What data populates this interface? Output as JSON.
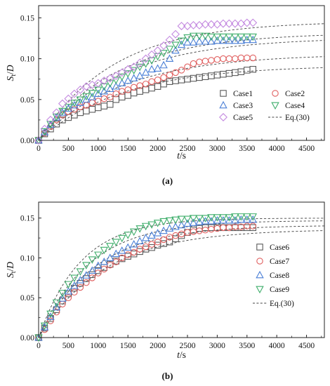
{
  "chart_data": [
    {
      "type": "scatter",
      "panel_label": "(a)",
      "xlabel": "t/s",
      "ylabel": "St/D",
      "xlim": [
        0,
        4800
      ],
      "ylim": [
        0,
        0.165
      ],
      "xticks": [
        0,
        500,
        1000,
        1500,
        2000,
        2500,
        3000,
        3500,
        4000,
        4500
      ],
      "yticks": [
        0.0,
        0.05,
        0.1,
        0.15
      ],
      "ytick_labels": [
        "0.00",
        "0.05",
        "0.10",
        "0.15"
      ],
      "legend_position": "bottom-right",
      "series": [
        {
          "name": "Case1",
          "marker": "square",
          "color": "#5a5a5a",
          "x": [
            0,
            100,
            200,
            300,
            400,
            500,
            600,
            700,
            800,
            900,
            1000,
            1100,
            1200,
            1300,
            1400,
            1500,
            1600,
            1700,
            1800,
            1900,
            2000,
            2100,
            2200,
            2300,
            2400,
            2500,
            2600,
            2700,
            2800,
            2900,
            3000,
            3100,
            3200,
            3300,
            3400,
            3500,
            3600
          ],
          "y": [
            0.0,
            0.008,
            0.014,
            0.02,
            0.025,
            0.028,
            0.031,
            0.034,
            0.036,
            0.038,
            0.04,
            0.042,
            0.044,
            0.05,
            0.053,
            0.055,
            0.058,
            0.06,
            0.062,
            0.064,
            0.066,
            0.069,
            0.072,
            0.073,
            0.074,
            0.075,
            0.076,
            0.077,
            0.078,
            0.079,
            0.08,
            0.081,
            0.082,
            0.083,
            0.084,
            0.086,
            0.087
          ]
        },
        {
          "name": "Case2",
          "marker": "circle",
          "color": "#e06060",
          "x": [
            0,
            100,
            200,
            300,
            400,
            500,
            600,
            700,
            800,
            900,
            1000,
            1100,
            1200,
            1300,
            1400,
            1500,
            1600,
            1700,
            1800,
            1900,
            2000,
            2100,
            2200,
            2300,
            2400,
            2500,
            2600,
            2700,
            2800,
            2900,
            3000,
            3100,
            3200,
            3300,
            3400,
            3500,
            3600
          ],
          "y": [
            0.0,
            0.009,
            0.017,
            0.025,
            0.031,
            0.035,
            0.038,
            0.041,
            0.043,
            0.046,
            0.048,
            0.051,
            0.053,
            0.057,
            0.06,
            0.062,
            0.065,
            0.067,
            0.069,
            0.072,
            0.074,
            0.077,
            0.08,
            0.083,
            0.086,
            0.09,
            0.094,
            0.096,
            0.097,
            0.098,
            0.099,
            0.1,
            0.1,
            0.1,
            0.101,
            0.101,
            0.101
          ]
        },
        {
          "name": "Case3",
          "marker": "triangle-up",
          "color": "#4a7fd6",
          "x": [
            0,
            100,
            200,
            300,
            400,
            500,
            600,
            700,
            800,
            900,
            1000,
            1100,
            1200,
            1300,
            1400,
            1500,
            1600,
            1700,
            1800,
            1900,
            2000,
            2100,
            2200,
            2300,
            2400,
            2500,
            2600,
            2700,
            2800,
            2900,
            3000,
            3100,
            3200,
            3300,
            3400,
            3500,
            3600
          ],
          "y": [
            0.0,
            0.01,
            0.019,
            0.028,
            0.034,
            0.039,
            0.043,
            0.046,
            0.05,
            0.053,
            0.057,
            0.06,
            0.063,
            0.066,
            0.07,
            0.073,
            0.076,
            0.079,
            0.083,
            0.087,
            0.088,
            0.092,
            0.1,
            0.11,
            0.117,
            0.12,
            0.12,
            0.121,
            0.121,
            0.121,
            0.122,
            0.122,
            0.122,
            0.122,
            0.122,
            0.123,
            0.123
          ]
        },
        {
          "name": "Case4",
          "marker": "triangle-down",
          "color": "#3fae6b",
          "x": [
            0,
            100,
            200,
            300,
            400,
            500,
            600,
            700,
            800,
            900,
            1000,
            1100,
            1200,
            1300,
            1400,
            1500,
            1600,
            1700,
            1800,
            1900,
            2000,
            2100,
            2200,
            2300,
            2400,
            2500,
            2600,
            2700,
            2800,
            2900,
            3000,
            3100,
            3200,
            3300,
            3400,
            3500,
            3600
          ],
          "y": [
            0.0,
            0.011,
            0.02,
            0.029,
            0.036,
            0.041,
            0.046,
            0.05,
            0.054,
            0.058,
            0.062,
            0.066,
            0.07,
            0.074,
            0.078,
            0.082,
            0.086,
            0.09,
            0.094,
            0.098,
            0.103,
            0.107,
            0.112,
            0.117,
            0.122,
            0.126,
            0.128,
            0.128,
            0.128,
            0.127,
            0.127,
            0.127,
            0.127,
            0.127,
            0.127,
            0.127,
            0.127
          ]
        },
        {
          "name": "Case5",
          "marker": "diamond",
          "color": "#c48ae0",
          "x": [
            0,
            100,
            200,
            300,
            400,
            500,
            600,
            700,
            800,
            900,
            1000,
            1100,
            1200,
            1300,
            1400,
            1500,
            1600,
            1700,
            1800,
            1900,
            2000,
            2100,
            2200,
            2300,
            2400,
            2500,
            2600,
            2700,
            2800,
            2900,
            3000,
            3100,
            3200,
            3300,
            3400,
            3500,
            3600
          ],
          "y": [
            0.0,
            0.014,
            0.025,
            0.034,
            0.045,
            0.051,
            0.057,
            0.062,
            0.066,
            0.068,
            0.07,
            0.073,
            0.076,
            0.079,
            0.083,
            0.087,
            0.09,
            0.095,
            0.1,
            0.105,
            0.11,
            0.116,
            0.123,
            0.13,
            0.14,
            0.14,
            0.141,
            0.141,
            0.142,
            0.142,
            0.142,
            0.143,
            0.143,
            0.143,
            0.143,
            0.144,
            0.144
          ]
        }
      ],
      "fit_label": "Eq.(30)",
      "fit_curves": [
        {
          "a": 0.092,
          "tau": 1400
        },
        {
          "a": 0.106,
          "tau": 1400
        },
        {
          "a": 0.126,
          "tau": 1350
        },
        {
          "a": 0.132,
          "tau": 1300
        },
        {
          "a": 0.146,
          "tau": 1250
        }
      ]
    },
    {
      "type": "scatter",
      "panel_label": "(b)",
      "xlabel": "t/s",
      "ylabel": "St/D",
      "xlim": [
        0,
        4800
      ],
      "ylim": [
        0,
        0.17
      ],
      "xticks": [
        0,
        500,
        1000,
        1500,
        2000,
        2500,
        3000,
        3500,
        4000,
        4500
      ],
      "yticks": [
        0.0,
        0.05,
        0.1,
        0.15
      ],
      "ytick_labels": [
        "0.00",
        "0.05",
        "0.10",
        "0.15"
      ],
      "legend_position": "right",
      "series": [
        {
          "name": "Case6",
          "marker": "square",
          "color": "#5a5a5a",
          "x": [
            0,
            100,
            200,
            300,
            400,
            500,
            600,
            700,
            800,
            900,
            1000,
            1100,
            1200,
            1300,
            1400,
            1500,
            1600,
            1700,
            1800,
            1900,
            2000,
            2100,
            2200,
            2300,
            2400,
            2500,
            2600,
            2700,
            2800,
            2900,
            3000,
            3100,
            3200,
            3300,
            3400,
            3500,
            3600
          ],
          "y": [
            0.0,
            0.012,
            0.024,
            0.035,
            0.046,
            0.055,
            0.062,
            0.068,
            0.074,
            0.079,
            0.084,
            0.088,
            0.092,
            0.096,
            0.099,
            0.102,
            0.105,
            0.108,
            0.111,
            0.113,
            0.116,
            0.118,
            0.12,
            0.124,
            0.128,
            0.132,
            0.135,
            0.137,
            0.138,
            0.138,
            0.138,
            0.138,
            0.138,
            0.138,
            0.138,
            0.138,
            0.138
          ]
        },
        {
          "name": "Case7",
          "marker": "circle",
          "color": "#e06060",
          "x": [
            0,
            100,
            200,
            300,
            400,
            500,
            600,
            700,
            800,
            900,
            1000,
            1100,
            1200,
            1300,
            1400,
            1500,
            1600,
            1700,
            1800,
            1900,
            2000,
            2100,
            2200,
            2300,
            2400,
            2500,
            2600,
            2700,
            2800,
            2900,
            3000,
            3100,
            3200,
            3300,
            3400,
            3500,
            3600
          ],
          "y": [
            0.0,
            0.01,
            0.021,
            0.032,
            0.042,
            0.05,
            0.057,
            0.063,
            0.069,
            0.075,
            0.081,
            0.086,
            0.091,
            0.095,
            0.1,
            0.104,
            0.107,
            0.111,
            0.114,
            0.117,
            0.12,
            0.123,
            0.126,
            0.128,
            0.13,
            0.132,
            0.133,
            0.134,
            0.135,
            0.136,
            0.137,
            0.138,
            0.138,
            0.139,
            0.139,
            0.14,
            0.14
          ]
        },
        {
          "name": "Case8",
          "marker": "triangle-up",
          "color": "#4a7fd6",
          "x": [
            0,
            100,
            200,
            300,
            400,
            500,
            600,
            700,
            800,
            900,
            1000,
            1100,
            1200,
            1300,
            1400,
            1500,
            1600,
            1700,
            1800,
            1900,
            2000,
            2100,
            2200,
            2300,
            2400,
            2500,
            2600,
            2700,
            2800,
            2900,
            3000,
            3100,
            3200,
            3300,
            3400,
            3500,
            3600
          ],
          "y": [
            0.0,
            0.013,
            0.026,
            0.038,
            0.049,
            0.058,
            0.065,
            0.072,
            0.078,
            0.084,
            0.09,
            0.095,
            0.1,
            0.105,
            0.109,
            0.113,
            0.117,
            0.121,
            0.125,
            0.128,
            0.131,
            0.134,
            0.137,
            0.139,
            0.141,
            0.143,
            0.144,
            0.145,
            0.146,
            0.146,
            0.147,
            0.147,
            0.147,
            0.147,
            0.148,
            0.148,
            0.148
          ]
        },
        {
          "name": "Case9",
          "marker": "triangle-down",
          "color": "#3fae6b",
          "x": [
            0,
            100,
            200,
            300,
            400,
            500,
            600,
            700,
            800,
            900,
            1000,
            1100,
            1200,
            1300,
            1400,
            1500,
            1600,
            1700,
            1800,
            1900,
            2000,
            2100,
            2200,
            2300,
            2400,
            2500,
            2600,
            2700,
            2800,
            2900,
            3000,
            3100,
            3200,
            3300,
            3400,
            3500,
            3600
          ],
          "y": [
            0.0,
            0.015,
            0.03,
            0.044,
            0.056,
            0.067,
            0.075,
            0.083,
            0.091,
            0.098,
            0.104,
            0.11,
            0.115,
            0.12,
            0.125,
            0.129,
            0.133,
            0.137,
            0.14,
            0.142,
            0.144,
            0.146,
            0.147,
            0.148,
            0.149,
            0.149,
            0.15,
            0.15,
            0.15,
            0.151,
            0.151,
            0.151,
            0.151,
            0.152,
            0.152,
            0.152,
            0.152
          ]
        }
      ],
      "fit_label": "Eq.(30)",
      "fit_curves": [
        {
          "a": 0.136,
          "tau": 1100
        },
        {
          "a": 0.141,
          "tau": 950
        },
        {
          "a": 0.147,
          "tau": 850
        },
        {
          "a": 0.15,
          "tau": 700
        }
      ]
    }
  ]
}
